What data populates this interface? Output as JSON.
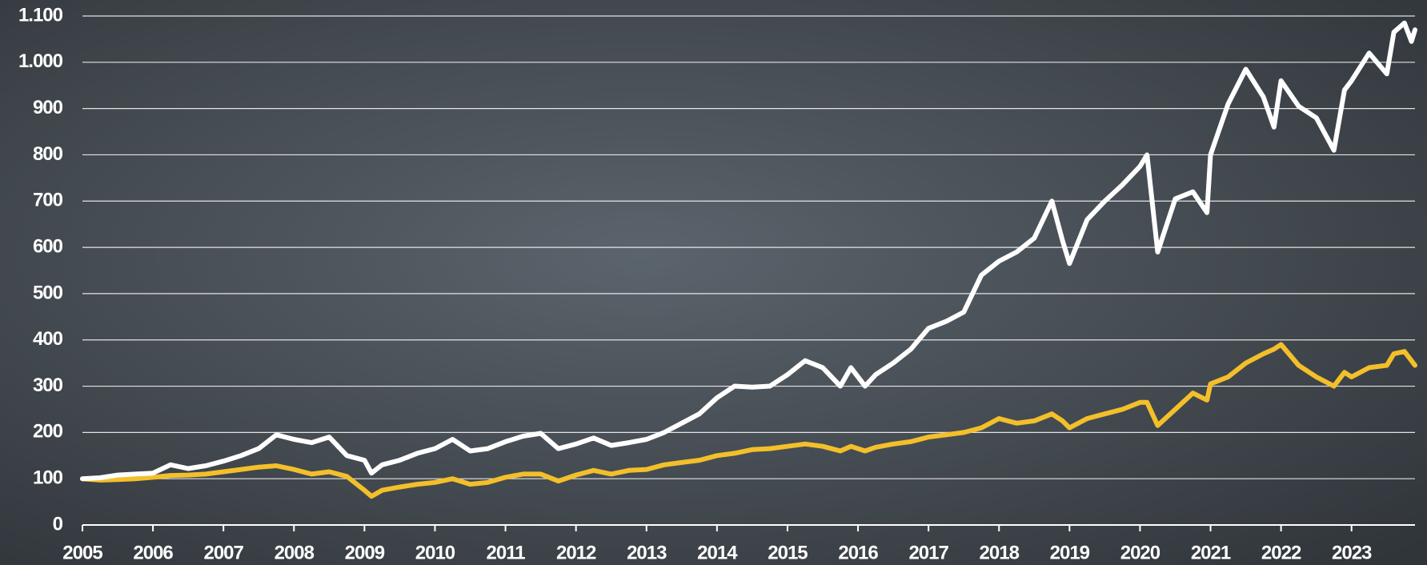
{
  "chart_data": {
    "type": "line",
    "x": [
      2005,
      2005.25,
      2005.5,
      2005.75,
      2006,
      2006.25,
      2006.5,
      2006.75,
      2007,
      2007.25,
      2007.5,
      2007.75,
      2008,
      2008.25,
      2008.5,
      2008.75,
      2009,
      2009.1,
      2009.25,
      2009.5,
      2009.75,
      2010,
      2010.25,
      2010.5,
      2010.75,
      2011,
      2011.25,
      2011.5,
      2011.75,
      2012,
      2012.25,
      2012.5,
      2012.75,
      2013,
      2013.25,
      2013.5,
      2013.75,
      2014,
      2014.25,
      2014.5,
      2014.75,
      2015,
      2015.25,
      2015.5,
      2015.75,
      2015.9,
      2016.1,
      2016.25,
      2016.5,
      2016.75,
      2017,
      2017.25,
      2017.5,
      2017.75,
      2018,
      2018.25,
      2018.5,
      2018.75,
      2018.9,
      2019,
      2019.25,
      2019.5,
      2019.75,
      2020,
      2020.1,
      2020.25,
      2020.5,
      2020.75,
      2020.95,
      2021,
      2021.25,
      2021.5,
      2021.75,
      2021.9,
      2022,
      2022.25,
      2022.5,
      2022.75,
      2022.9,
      2023,
      2023.25,
      2023.5,
      2023.6,
      2023.75,
      2023.85,
      2023.9
    ],
    "series": [
      {
        "color": "#ffffff",
        "values": [
          100,
          102,
          108,
          110,
          112,
          130,
          122,
          128,
          138,
          150,
          165,
          195,
          185,
          178,
          190,
          150,
          140,
          112,
          130,
          140,
          155,
          165,
          185,
          160,
          165,
          180,
          192,
          198,
          165,
          175,
          188,
          172,
          178,
          185,
          200,
          220,
          240,
          275,
          300,
          298,
          300,
          325,
          355,
          340,
          300,
          340,
          300,
          325,
          350,
          380,
          425,
          440,
          460,
          540,
          570,
          590,
          620,
          700,
          615,
          565,
          660,
          700,
          735,
          775,
          800,
          590,
          705,
          720,
          675,
          800,
          910,
          985,
          925,
          860,
          960,
          905,
          880,
          810,
          940,
          960,
          1020,
          975,
          1065,
          1085,
          1045,
          1070
        ]
      },
      {
        "color": "#f3bf2a",
        "values": [
          100,
          97,
          98,
          100,
          103,
          107,
          108,
          110,
          115,
          120,
          125,
          128,
          120,
          110,
          115,
          105,
          75,
          62,
          75,
          82,
          88,
          92,
          100,
          88,
          92,
          103,
          110,
          110,
          95,
          108,
          118,
          110,
          118,
          120,
          130,
          135,
          140,
          150,
          155,
          163,
          165,
          170,
          175,
          170,
          160,
          170,
          160,
          168,
          175,
          180,
          190,
          195,
          200,
          210,
          230,
          220,
          225,
          240,
          225,
          210,
          230,
          240,
          250,
          265,
          265,
          215,
          250,
          285,
          270,
          305,
          320,
          350,
          370,
          380,
          390,
          345,
          320,
          300,
          330,
          320,
          340,
          345,
          370,
          375,
          355,
          345
        ]
      }
    ],
    "xlim": [
      2005,
      2023.9
    ],
    "xticks": [
      2005,
      2006,
      2007,
      2008,
      2009,
      2010,
      2011,
      2012,
      2013,
      2014,
      2015,
      2016,
      2017,
      2018,
      2019,
      2020,
      2021,
      2022,
      2023
    ],
    "ylim": [
      0,
      1100
    ],
    "yticks": [
      0,
      100,
      200,
      300,
      400,
      500,
      600,
      700,
      800,
      900,
      {
        "value": 1000,
        "label": "1.000"
      },
      {
        "value": 1100,
        "label": "1.100"
      }
    ],
    "grid": true
  }
}
